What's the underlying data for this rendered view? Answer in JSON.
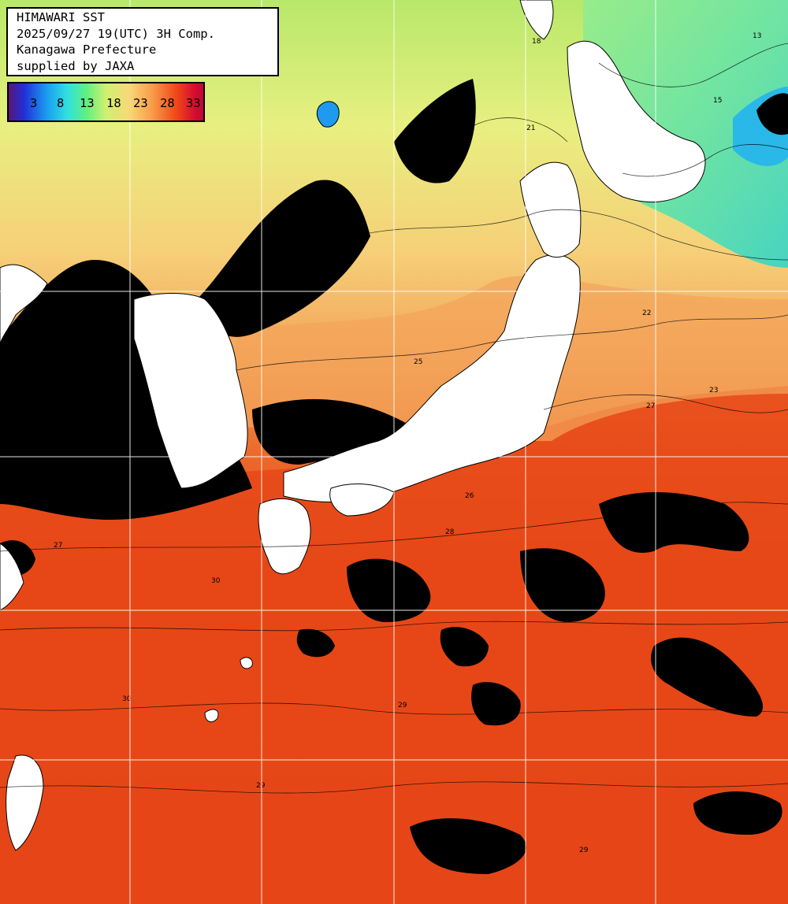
{
  "header": {
    "title": "HIMAWARI SST",
    "datetime": "2025/09/27 19(UTC) 3H Comp.",
    "region": "Kanagawa Prefecture",
    "credit": "supplied by JAXA"
  },
  "legend": {
    "ticks": [
      "3",
      "8",
      "13",
      "18",
      "23",
      "28",
      "33"
    ],
    "colors": [
      "#5a1478",
      "#2030d8",
      "#1aa0f0",
      "#30e0e0",
      "#60f080",
      "#d0f070",
      "#f8d878",
      "#f89a48",
      "#f04818",
      "#d40a30"
    ]
  },
  "contour_labels": [
    "21",
    "22",
    "23",
    "25",
    "26",
    "27",
    "28",
    "29",
    "30",
    "13",
    "15",
    "18"
  ],
  "colors": {
    "land": "#ffffff",
    "cloud_mask": "#000000",
    "grid": "#ffffff"
  }
}
